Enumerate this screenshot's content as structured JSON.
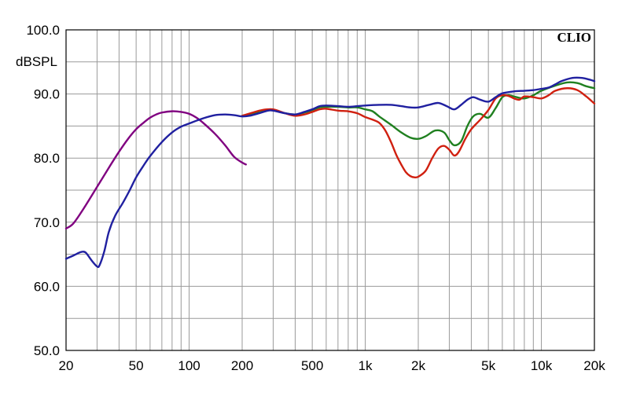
{
  "chart_data": {
    "type": "line",
    "ylabel": "dBSPL",
    "brand": "CLIO",
    "x_scale": "log",
    "xlim": [
      20,
      20000
    ],
    "ylim": [
      50,
      100
    ],
    "grid": true,
    "x_ticks": [
      {
        "value": 20,
        "label": "20"
      },
      {
        "value": 50,
        "label": "50"
      },
      {
        "value": 100,
        "label": "100"
      },
      {
        "value": 200,
        "label": "200"
      },
      {
        "value": 500,
        "label": "500"
      },
      {
        "value": 1000,
        "label": "1k"
      },
      {
        "value": 2000,
        "label": "2k"
      },
      {
        "value": 5000,
        "label": "5k"
      },
      {
        "value": 10000,
        "label": "10k"
      },
      {
        "value": 20000,
        "label": "20k"
      }
    ],
    "y_ticks": [
      {
        "value": 50,
        "label": "50.0"
      },
      {
        "value": 60,
        "label": "60.0"
      },
      {
        "value": 70,
        "label": "70.0"
      },
      {
        "value": 80,
        "label": "80.0"
      },
      {
        "value": 90,
        "label": "90.0"
      },
      {
        "value": 100,
        "label": "100.0"
      }
    ],
    "series": [
      {
        "color": "#800080",
        "points": [
          [
            20,
            69
          ],
          [
            22,
            69.8
          ],
          [
            25,
            72
          ],
          [
            30,
            75.5
          ],
          [
            35,
            78.5
          ],
          [
            40,
            81
          ],
          [
            45,
            83
          ],
          [
            50,
            84.5
          ],
          [
            55,
            85.5
          ],
          [
            60,
            86.3
          ],
          [
            65,
            86.8
          ],
          [
            70,
            87.1
          ],
          [
            80,
            87.3
          ],
          [
            90,
            87.2
          ],
          [
            100,
            86.9
          ],
          [
            110,
            86.3
          ],
          [
            120,
            85.5
          ],
          [
            140,
            83.8
          ],
          [
            160,
            82
          ],
          [
            180,
            80.2
          ],
          [
            200,
            79.3
          ],
          [
            210,
            79
          ]
        ]
      },
      {
        "color": "#2020a0",
        "points": [
          [
            20,
            64.3
          ],
          [
            22,
            64.8
          ],
          [
            24,
            65.3
          ],
          [
            25,
            65.4
          ],
          [
            26,
            65.2
          ],
          [
            28,
            64
          ],
          [
            30,
            63.1
          ],
          [
            31,
            63.3
          ],
          [
            33,
            65.5
          ],
          [
            35,
            68.5
          ],
          [
            38,
            71
          ],
          [
            42,
            73
          ],
          [
            46,
            75
          ],
          [
            50,
            77
          ],
          [
            55,
            78.8
          ],
          [
            60,
            80.3
          ],
          [
            70,
            82.5
          ],
          [
            80,
            84
          ],
          [
            90,
            84.9
          ],
          [
            100,
            85.4
          ],
          [
            120,
            86.2
          ],
          [
            140,
            86.7
          ],
          [
            160,
            86.8
          ],
          [
            180,
            86.7
          ],
          [
            200,
            86.5
          ],
          [
            220,
            86.6
          ],
          [
            250,
            87
          ],
          [
            280,
            87.4
          ],
          [
            300,
            87.4
          ],
          [
            350,
            87
          ],
          [
            400,
            86.8
          ],
          [
            450,
            87.2
          ],
          [
            500,
            87.6
          ],
          [
            550,
            88.1
          ],
          [
            600,
            88.2
          ],
          [
            700,
            88.1
          ],
          [
            800,
            88
          ],
          [
            900,
            88.1
          ],
          [
            1000,
            88.2
          ],
          [
            1200,
            88.3
          ],
          [
            1400,
            88.3
          ],
          [
            1600,
            88.1
          ],
          [
            1800,
            87.9
          ],
          [
            2000,
            87.9
          ],
          [
            2300,
            88.3
          ],
          [
            2600,
            88.6
          ],
          [
            2900,
            88.1
          ],
          [
            3200,
            87.6
          ],
          [
            3500,
            88.3
          ],
          [
            3800,
            89.1
          ],
          [
            4100,
            89.5
          ],
          [
            4500,
            89.1
          ],
          [
            5000,
            88.8
          ],
          [
            5500,
            89.5
          ],
          [
            6000,
            90.1
          ],
          [
            7000,
            90.4
          ],
          [
            8000,
            90.5
          ],
          [
            9000,
            90.6
          ],
          [
            10000,
            90.8
          ],
          [
            11000,
            91
          ],
          [
            12000,
            91.5
          ],
          [
            13000,
            92
          ],
          [
            15000,
            92.5
          ],
          [
            17000,
            92.5
          ],
          [
            19000,
            92.2
          ],
          [
            20000,
            92
          ]
        ]
      },
      {
        "color": "#208020",
        "points": [
          [
            200,
            86.6
          ],
          [
            230,
            87
          ],
          [
            260,
            87.4
          ],
          [
            300,
            87.5
          ],
          [
            350,
            87
          ],
          [
            400,
            86.8
          ],
          [
            450,
            87.1
          ],
          [
            500,
            87.5
          ],
          [
            550,
            87.9
          ],
          [
            600,
            88
          ],
          [
            700,
            88
          ],
          [
            800,
            87.9
          ],
          [
            900,
            87.9
          ],
          [
            1000,
            87.6
          ],
          [
            1100,
            87.3
          ],
          [
            1200,
            86.5
          ],
          [
            1400,
            85.2
          ],
          [
            1600,
            84
          ],
          [
            1800,
            83.2
          ],
          [
            2000,
            83
          ],
          [
            2200,
            83.4
          ],
          [
            2500,
            84.3
          ],
          [
            2800,
            84
          ],
          [
            3000,
            82.8
          ],
          [
            3200,
            82
          ],
          [
            3500,
            82.6
          ],
          [
            3800,
            85
          ],
          [
            4100,
            86.5
          ],
          [
            4500,
            86.9
          ],
          [
            5000,
            86.3
          ],
          [
            5500,
            87.8
          ],
          [
            6000,
            89.5
          ],
          [
            6500,
            89.8
          ],
          [
            7000,
            89.6
          ],
          [
            8000,
            89.3
          ],
          [
            9000,
            89.8
          ],
          [
            10000,
            90.5
          ],
          [
            12000,
            91.3
          ],
          [
            14000,
            91.8
          ],
          [
            16000,
            91.7
          ],
          [
            18000,
            91.2
          ],
          [
            20000,
            90.9
          ]
        ]
      },
      {
        "color": "#d02010",
        "points": [
          [
            200,
            86.6
          ],
          [
            230,
            87.1
          ],
          [
            260,
            87.5
          ],
          [
            300,
            87.6
          ],
          [
            350,
            87
          ],
          [
            400,
            86.6
          ],
          [
            450,
            86.8
          ],
          [
            500,
            87.2
          ],
          [
            550,
            87.6
          ],
          [
            600,
            87.7
          ],
          [
            700,
            87.4
          ],
          [
            800,
            87.3
          ],
          [
            900,
            87
          ],
          [
            1000,
            86.4
          ],
          [
            1100,
            86
          ],
          [
            1200,
            85.5
          ],
          [
            1300,
            84.3
          ],
          [
            1400,
            82.5
          ],
          [
            1500,
            80.5
          ],
          [
            1600,
            79
          ],
          [
            1700,
            77.8
          ],
          [
            1800,
            77.2
          ],
          [
            1900,
            77
          ],
          [
            2000,
            77.1
          ],
          [
            2200,
            78
          ],
          [
            2400,
            80
          ],
          [
            2600,
            81.5
          ],
          [
            2800,
            81.9
          ],
          [
            3000,
            81.3
          ],
          [
            3200,
            80.4
          ],
          [
            3400,
            81
          ],
          [
            3700,
            83
          ],
          [
            4000,
            84.5
          ],
          [
            4500,
            86
          ],
          [
            5000,
            87.5
          ],
          [
            5500,
            89.3
          ],
          [
            6000,
            89.8
          ],
          [
            6500,
            89.7
          ],
          [
            7000,
            89.3
          ],
          [
            7500,
            89.1
          ],
          [
            8000,
            89.6
          ],
          [
            9000,
            89.5
          ],
          [
            10000,
            89.3
          ],
          [
            11000,
            89.8
          ],
          [
            12000,
            90.5
          ],
          [
            14000,
            90.9
          ],
          [
            16000,
            90.6
          ],
          [
            18000,
            89.6
          ],
          [
            20000,
            88.5
          ]
        ]
      }
    ]
  }
}
